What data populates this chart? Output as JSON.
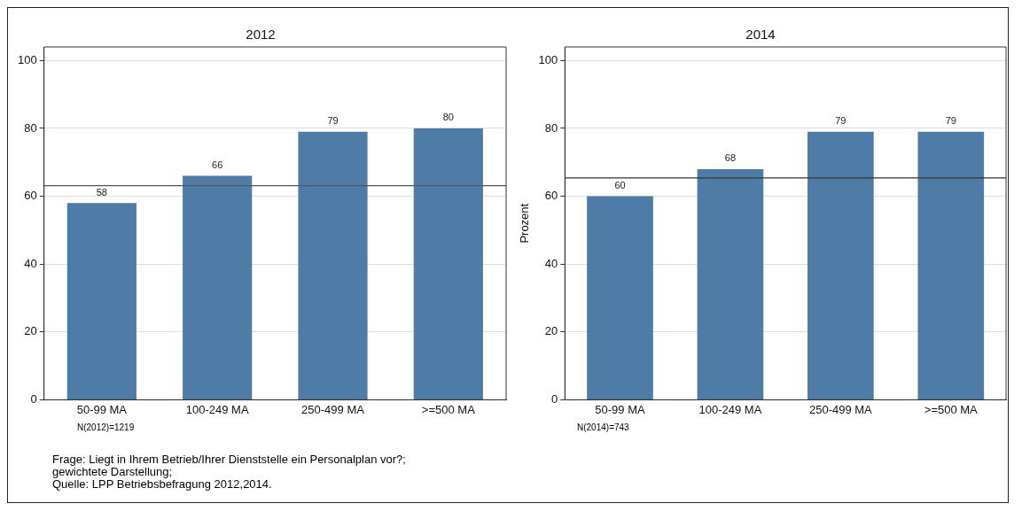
{
  "chart_data": [
    {
      "type": "bar",
      "title": "2012",
      "categories": [
        "50-99 MA",
        "100-249 MA",
        "250-499 MA",
        ">=500 MA"
      ],
      "values": [
        58,
        66,
        79,
        80
      ],
      "color": "#4f7ba7",
      "data_labels": true,
      "ylim": [
        0,
        104
      ],
      "yticks": [
        0,
        20,
        40,
        60,
        80,
        100
      ],
      "grid": "y",
      "ref_lines": [
        {
          "axis": "y",
          "value": 63.1,
          "color": "#555555"
        }
      ],
      "annotations": [
        "N(2012)=1219",
        "Frage: Liegt in Ihrem Betrieb/Ihrer Dienststelle ein Personalplan vor?;",
        "gewichtete Darstellung;",
        "Quelle: LPP Betriebsbefragung 2012,2014."
      ]
    },
    {
      "type": "bar",
      "title": "2014",
      "ylabel": "Prozent",
      "categories": [
        "50-99 MA",
        "100-249 MA",
        "250-499 MA",
        ">=500 MA"
      ],
      "values": [
        60,
        68,
        79,
        79
      ],
      "color": "#4f7ba7",
      "data_labels": true,
      "ylim": [
        0,
        104
      ],
      "yticks": [
        0,
        20,
        40,
        60,
        80,
        100
      ],
      "grid": "y",
      "ref_lines": [
        {
          "axis": "y",
          "value": 65.4,
          "color": "#333333"
        }
      ],
      "annotations": [
        "N(2014)=743"
      ]
    }
  ]
}
